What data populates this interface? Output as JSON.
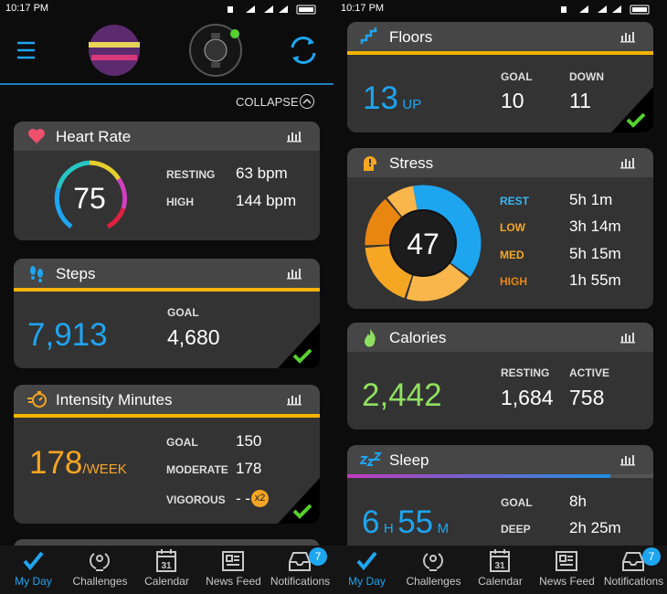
{
  "screens": [
    {
      "status_time": "10:17 PM",
      "collapse": "COLLAPSE",
      "heart_rate": {
        "title": "Heart Rate",
        "current": "75",
        "resting_label": "RESTING",
        "resting": "63 bpm",
        "high_label": "HIGH",
        "high": "144 bpm"
      },
      "steps": {
        "title": "Steps",
        "count": "7,913",
        "goal_label": "GOAL",
        "goal": "4,680"
      },
      "intensity": {
        "title": "Intensity Minutes",
        "total": "178",
        "unit": "/WEEK",
        "goal_label": "GOAL",
        "goal": "150",
        "moderate_label": "MODERATE",
        "moderate": "178",
        "vigorous_label": "VIGOROUS",
        "vigorous": "- -",
        "multiplier": "x2"
      },
      "nav": [
        {
          "label": "My Day"
        },
        {
          "label": "Challenges"
        },
        {
          "label": "Calendar",
          "icon_text": "31"
        },
        {
          "label": "News Feed"
        },
        {
          "label": "Notifications",
          "badge": "7"
        }
      ]
    },
    {
      "status_time": "10:17 PM",
      "floors": {
        "title": "Floors",
        "up": "13",
        "up_unit": "UP",
        "goal_label": "GOAL",
        "goal": "10",
        "down_label": "DOWN",
        "down": "11"
      },
      "stress": {
        "title": "Stress",
        "level": "47",
        "rest_label": "REST",
        "rest": "5h 1m",
        "low_label": "LOW",
        "low": "3h 14m",
        "med_label": "MED",
        "med": "5h 15m",
        "high_label": "HIGH",
        "high": "1h 55m"
      },
      "calories": {
        "title": "Calories",
        "total": "2,442",
        "resting_label": "RESTING",
        "resting": "1,684",
        "active_label": "ACTIVE",
        "active": "758"
      },
      "sleep": {
        "title": "Sleep",
        "hours": "6",
        "hours_unit": "H",
        "minutes": "55",
        "minutes_unit": "M",
        "goal_label": "GOAL",
        "goal": "8h",
        "deep_label": "DEEP",
        "deep": "2h 25m"
      },
      "nav": [
        {
          "label": "My Day"
        },
        {
          "label": "Challenges"
        },
        {
          "label": "Calendar",
          "icon_text": "31"
        },
        {
          "label": "News Feed"
        },
        {
          "label": "Notifications",
          "badge": "7"
        }
      ]
    }
  ]
}
